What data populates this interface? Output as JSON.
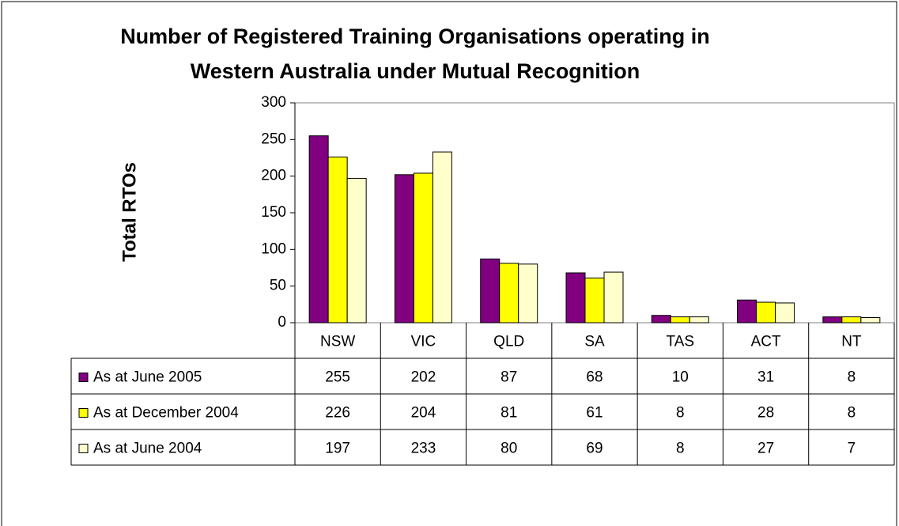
{
  "chart_data": {
    "type": "bar",
    "title": [
      "Number of Registered Training Organisations operating in",
      "Western Australia under Mutual Recognition"
    ],
    "y_label": "Total RTOs",
    "categories": [
      "NSW",
      "VIC",
      "QLD",
      "SA",
      "TAS",
      "ACT",
      "NT"
    ],
    "series": [
      {
        "name": "As at June 2005",
        "color": "#800080",
        "values": [
          255,
          202,
          87,
          68,
          10,
          31,
          8
        ]
      },
      {
        "name": "As at December 2004",
        "color": "#ffff00",
        "values": [
          226,
          204,
          81,
          61,
          8,
          28,
          8
        ]
      },
      {
        "name": "As at June 2004",
        "color": "#ffffcc",
        "values": [
          197,
          233,
          80,
          69,
          8,
          27,
          7
        ]
      }
    ],
    "ylim": [
      0,
      300
    ],
    "yticks": [
      0,
      50,
      100,
      150,
      200,
      250,
      300
    ],
    "data_table": true
  }
}
